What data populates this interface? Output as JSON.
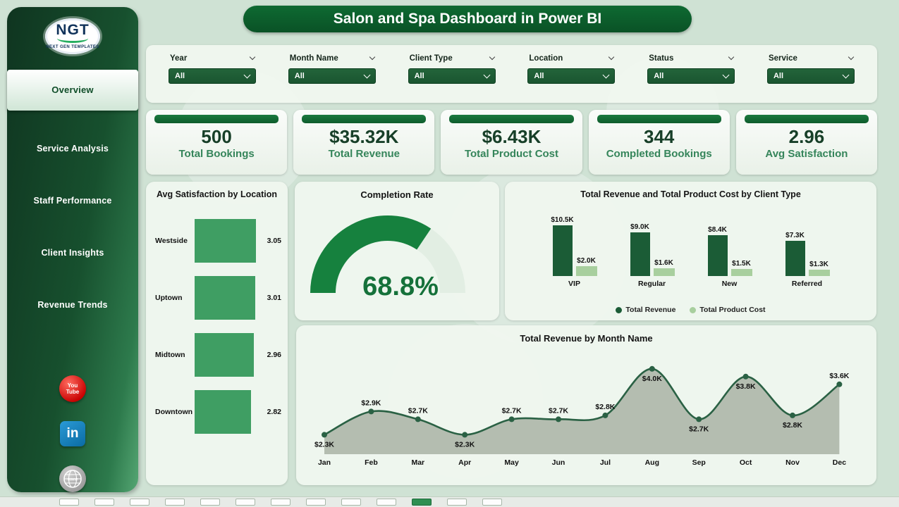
{
  "header": {
    "title": "Salon and Spa Dashboard in Power BI"
  },
  "sidebar": {
    "logo": {
      "text": "NGT",
      "subtext": "NEXT GEN TEMPLATES"
    },
    "items": [
      {
        "label": "Overview",
        "active": true
      },
      {
        "label": "Service Analysis",
        "active": false
      },
      {
        "label": "Staff Performance",
        "active": false
      },
      {
        "label": "Client Insights",
        "active": false
      },
      {
        "label": "Revenue Trends",
        "active": false
      }
    ],
    "social": [
      {
        "name": "youtube",
        "line1": "You",
        "line2": "Tube"
      },
      {
        "name": "linkedin",
        "text": "in"
      },
      {
        "name": "website",
        "text": "www"
      }
    ]
  },
  "filters": [
    {
      "label": "Year",
      "value": "All"
    },
    {
      "label": "Month Name",
      "value": "All"
    },
    {
      "label": "Client Type",
      "value": "All"
    },
    {
      "label": "Location",
      "value": "All"
    },
    {
      "label": "Status",
      "value": "All"
    },
    {
      "label": "Service",
      "value": "All"
    }
  ],
  "kpis": [
    {
      "value": "500",
      "label": "Total Bookings"
    },
    {
      "value": "$35.32K",
      "label": "Total Revenue"
    },
    {
      "value": "$6.43K",
      "label": "Total Product Cost"
    },
    {
      "value": "344",
      "label": "Completed Bookings"
    },
    {
      "value": "2.96",
      "label": "Avg Satisfaction"
    }
  ],
  "chart_data": [
    {
      "type": "bar",
      "orientation": "horizontal",
      "title": "Avg Satisfaction by Location",
      "categories": [
        "Westside",
        "Uptown",
        "Midtown",
        "Downtown"
      ],
      "values": [
        3.05,
        3.01,
        2.96,
        2.82
      ],
      "xlim": [
        0,
        3.2
      ],
      "bar_color": "#3f9e63"
    },
    {
      "type": "gauge",
      "title": "Completion Rate",
      "value": 68.8,
      "min": 0,
      "max": 100,
      "label": "68.8%",
      "fill_color": "#16813e",
      "track_color": "#e2eee3"
    },
    {
      "type": "bar",
      "title": "Total Revenue and Total Product Cost by Client Type",
      "categories": [
        "VIP",
        "Regular",
        "New",
        "Referred"
      ],
      "series": [
        {
          "name": "Total Revenue",
          "values": [
            10.5,
            9.0,
            8.4,
            7.3
          ],
          "labels": [
            "$10.5K",
            "$9.0K",
            "$8.4K",
            "$7.3K"
          ],
          "color": "#1b5c36"
        },
        {
          "name": "Total Product Cost",
          "values": [
            2.0,
            1.6,
            1.5,
            1.3
          ],
          "labels": [
            "$2.0K",
            "$1.6K",
            "$1.5K",
            "$1.3K"
          ],
          "color": "#a8cf9e"
        }
      ],
      "legend_position": "bottom",
      "ylim": [
        0,
        10.5
      ]
    },
    {
      "type": "area",
      "title": "Total Revenue by Month Name",
      "categories": [
        "Jan",
        "Feb",
        "Mar",
        "Apr",
        "May",
        "Jun",
        "Jul",
        "Aug",
        "Sep",
        "Oct",
        "Nov",
        "Dec"
      ],
      "values": [
        2.3,
        2.9,
        2.7,
        2.3,
        2.7,
        2.7,
        2.8,
        4.0,
        2.7,
        3.8,
        2.8,
        3.6
      ],
      "labels": [
        "$2.3K",
        "$2.9K",
        "$2.7K",
        "$2.3K",
        "$2.7K",
        "$2.7K",
        "$2.8K",
        "$4.0K",
        "$2.7K",
        "$3.8K",
        "$2.8K",
        "$3.6K"
      ],
      "label_positions": [
        "below",
        "above",
        "above",
        "below",
        "above",
        "above",
        "above",
        "below",
        "below",
        "below",
        "below",
        "above"
      ],
      "ylim": [
        1.8,
        4.25
      ],
      "line_color": "#2a6144",
      "fill_color": "#a9b3a5"
    }
  ],
  "taskbar": {
    "tile_count": 13,
    "active_index": 10
  },
  "colors": {
    "background": "#cfe2d4",
    "primary_dark_green": "#0d5f2e",
    "panel_bg": "#f0f6ef",
    "kpi_number": "#173f28",
    "kpi_label": "#35855a"
  }
}
